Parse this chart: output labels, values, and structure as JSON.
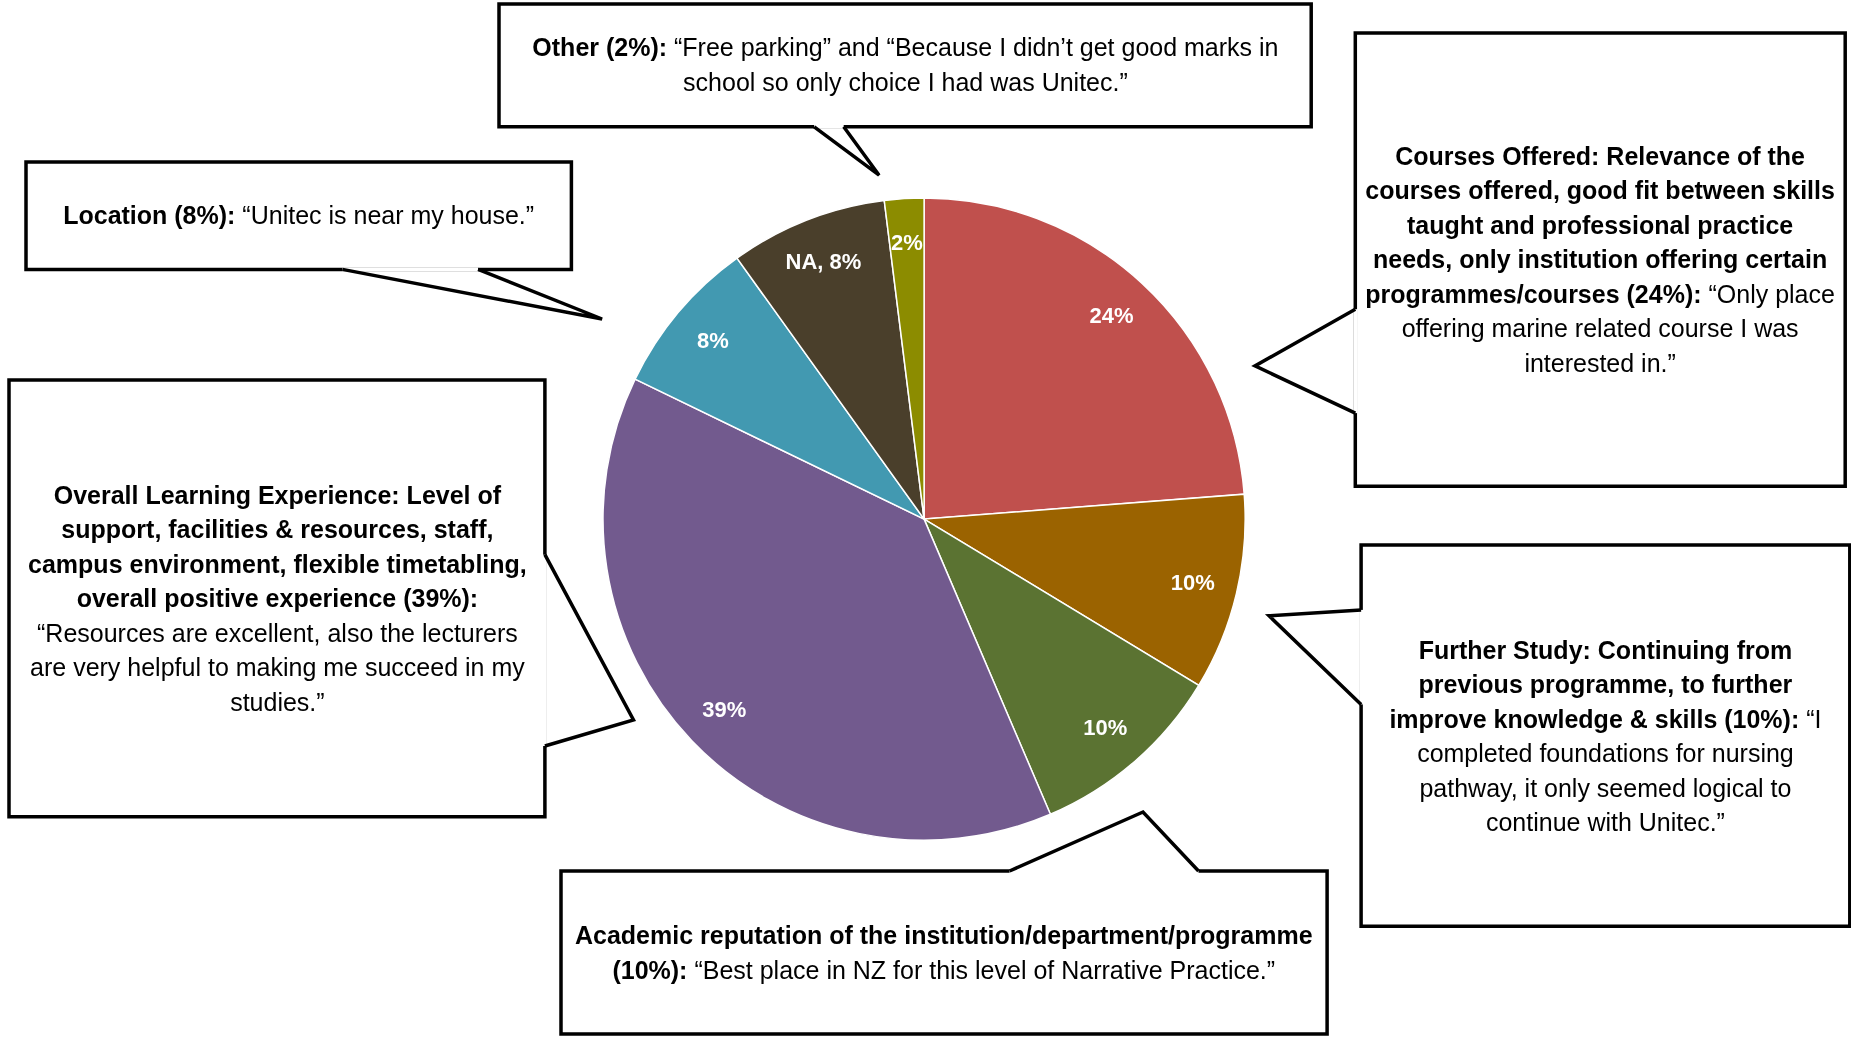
{
  "chart_data": {
    "type": "pie",
    "categories": [
      null,
      null,
      null,
      null,
      null,
      null,
      null
    ],
    "values": [
      24,
      10,
      10,
      39,
      8,
      8,
      2
    ],
    "colors": [
      "#c0504d",
      "#9b6300",
      "#5b7332",
      "#725a8e",
      "#4299b1",
      "#4a3f2b",
      "#8c8c00"
    ],
    "value_labels": [
      "24%",
      "10%",
      "10%",
      "39%",
      "8%",
      "NA, 8%",
      "2%"
    ],
    "annotations": [
      "Courses Offered: Relevance of the courses offered, good fit between skills taught and professional practice needs, only institution offering certain programmes/courses (24%): “Only place offering marine related course I was interested in.”",
      "Further Study: Continuing from previous programme, to further improve knowledge & skills (10%): “I completed foundations for nursing pathway, it only seemed logical to continue with Unitec.”",
      "Academic reputation of the institution/department/programme (10%): “Best place in NZ for this level of Narrative Practice.”",
      "Overall Learning Experience: Level of support, facilities & resources, staff, campus environment, flexible timetabling, overall positive experience (39%): “Resources are excellent, also the lecturers are very helpful to making me succeed in my studies.”",
      "Location (8%): “Unitec is near my house.”",
      "Other (2%): “Free parking” and “Because I didn’t get good marks in school so only choice I had was Unitec.”"
    ]
  }
}
